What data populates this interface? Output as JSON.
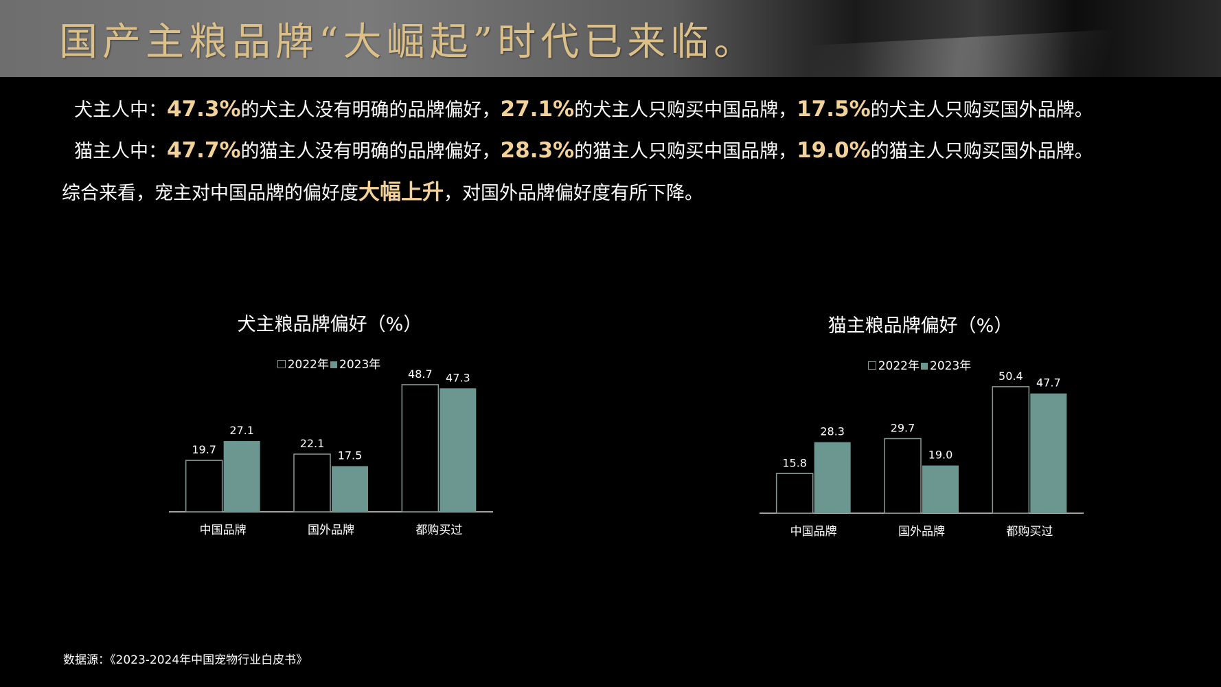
{
  "header": {
    "title": "国产主粮品牌“大崛起”时代已来临。"
  },
  "summary": {
    "line1": {
      "prefix": "犬主人中：",
      "v1": "47.3%",
      "t1": "的犬主人没有明确的品牌偏好，",
      "v2": "27.1%",
      "t2": "的犬主人只购买中国品牌，",
      "v3": "17.5%",
      "t3": "的犬主人只购买国外品牌。"
    },
    "line2": {
      "prefix": "猫主人中：",
      "v1": "47.7%",
      "t1": "的猫主人没有明确的品牌偏好，",
      "v2": "28.3%",
      "t2": "的猫主人只购买中国品牌，",
      "v3": "19.0%",
      "t3": "的猫主人只购买国外品牌。"
    },
    "line3": {
      "a": "综合来看，宠主对中国品牌的偏好度",
      "emph": "大幅上升",
      "b": "，对国外品牌偏好度有所下降。"
    }
  },
  "colors": {
    "bar_2022_fill": "#000000",
    "bar_2022_stroke": "#8a9c98",
    "bar_2023_fill": "#6b9790",
    "highlight": "#f3d29a",
    "title_gold": "#dcc08a"
  },
  "chart_data": [
    {
      "type": "bar",
      "title": "犬主粮品牌偏好（%）",
      "categories": [
        "中国品牌",
        "国外品牌",
        "都购买过"
      ],
      "series": [
        {
          "name": "2022年",
          "values": [
            19.7,
            22.1,
            48.7
          ]
        },
        {
          "name": "2023年",
          "values": [
            27.1,
            17.5,
            47.3
          ]
        }
      ],
      "value_labels": [
        [
          "19.7",
          "22.1",
          "48.7"
        ],
        [
          "27.1",
          "17.5",
          "47.3"
        ]
      ],
      "legend_position": "top",
      "grid": false,
      "ylim": [
        0,
        50
      ]
    },
    {
      "type": "bar",
      "title": "猫主粮品牌偏好（%）",
      "categories": [
        "中国品牌",
        "国外品牌",
        "都购买过"
      ],
      "series": [
        {
          "name": "2022年",
          "values": [
            15.8,
            29.7,
            50.4
          ]
        },
        {
          "name": "2023年",
          "values": [
            28.3,
            19.0,
            47.7
          ]
        }
      ],
      "value_labels": [
        [
          "15.8",
          "29.7",
          "50.4"
        ],
        [
          "28.3",
          "19.0",
          "47.7"
        ]
      ],
      "legend_position": "top",
      "grid": false,
      "ylim": [
        0,
        52
      ]
    }
  ],
  "footer": {
    "source": "数据源：《2023-2024年中国宠物行业白皮书》"
  }
}
